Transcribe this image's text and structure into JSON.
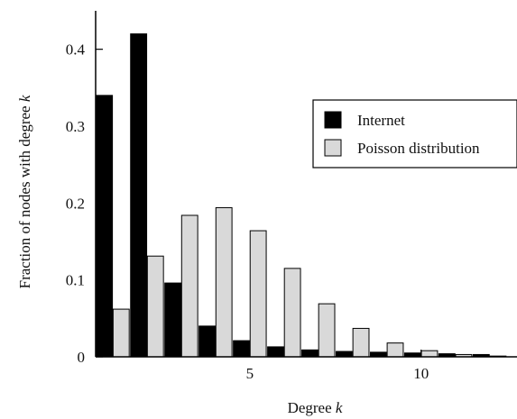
{
  "chart_data": {
    "type": "bar",
    "xlabel": "Degree",
    "xlabel_var": "k",
    "ylabel": "Fraction of nodes with degree",
    "ylabel_var": "k",
    "ylim": [
      0,
      0.45
    ],
    "xlim": [
      0.5,
      12.8
    ],
    "y_ticks": [
      0,
      0.1,
      0.2,
      0.3,
      0.4
    ],
    "y_tick_labels": [
      "0",
      "0.1",
      "0.2",
      "0.3",
      "0.4"
    ],
    "x_ticks": [
      5,
      10
    ],
    "x_tick_labels": [
      "5",
      "10"
    ],
    "legend_position": "top-right",
    "categories": [
      1,
      2,
      3,
      4,
      5,
      6,
      7,
      8,
      9,
      10,
      11,
      12
    ],
    "series": [
      {
        "name": "Internet",
        "color": "#000000",
        "values": [
          0.34,
          0.42,
          0.096,
          0.04,
          0.021,
          0.013,
          0.009,
          0.007,
          0.006,
          0.005,
          0.004,
          0.003
        ]
      },
      {
        "name": "Poisson distribution",
        "color": "#d9d9d9",
        "values": [
          0.062,
          0.131,
          0.184,
          0.194,
          0.164,
          0.115,
          0.069,
          0.037,
          0.018,
          0.008,
          0.003,
          0.001
        ]
      }
    ]
  }
}
